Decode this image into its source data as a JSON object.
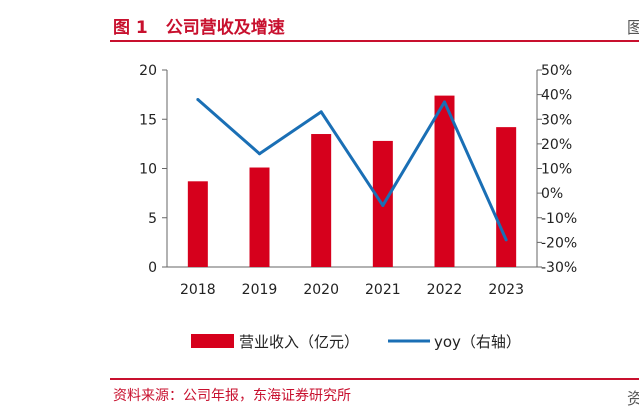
{
  "figure": {
    "number": "图 1",
    "title": "公司营收及增速",
    "source": "资料来源：公司年报，东海证券研究所",
    "edge_char_top": "图",
    "edge_char_bottom": "资"
  },
  "chart_data": {
    "type": "bar",
    "categories": [
      "2018",
      "2019",
      "2020",
      "2021",
      "2022",
      "2023"
    ],
    "series": [
      {
        "name": "营业收入（亿元）",
        "type": "bar",
        "axis": "left",
        "color": "#d6001c",
        "values": [
          8.7,
          10.1,
          13.5,
          12.8,
          17.4,
          14.2
        ]
      },
      {
        "name": "yoy（右轴）",
        "type": "line",
        "axis": "right",
        "color": "#1a6fb5",
        "values": [
          38,
          16,
          33,
          -5,
          37,
          -19
        ]
      }
    ],
    "ylim_left": [
      0,
      20
    ],
    "yticks_left": [
      0,
      5,
      10,
      15,
      20
    ],
    "ytick_labels_left": [
      "0",
      "5",
      "10",
      "15",
      "20"
    ],
    "ylim_right": [
      -30,
      50
    ],
    "yticks_right": [
      -30,
      -20,
      -10,
      0,
      10,
      20,
      30,
      40,
      50
    ],
    "ytick_labels_right": [
      "-30%",
      "-20%",
      "-10%",
      "0%",
      "10%",
      "20%",
      "30%",
      "40%",
      "50%"
    ],
    "legend_position": "bottom"
  }
}
